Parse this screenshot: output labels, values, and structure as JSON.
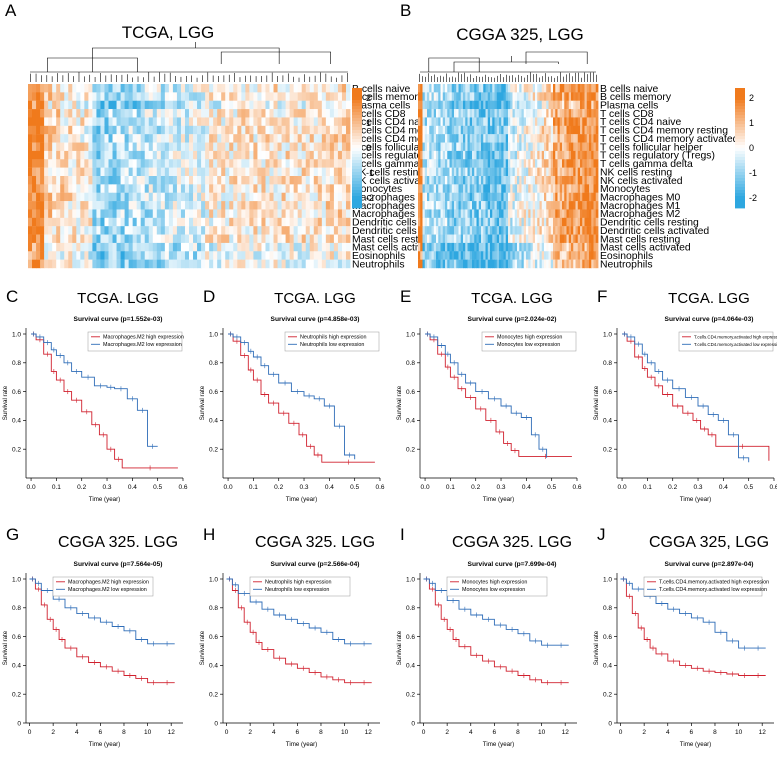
{
  "heatmaps": [
    {
      "letter": "A",
      "title": "TCGA, LGG",
      "scale": {
        "values": [
          2,
          1,
          0,
          -1,
          -2
        ]
      },
      "colors": {
        "low": "#2ea7e0",
        "mid": "#ffffff",
        "high": "#f07a1c"
      }
    },
    {
      "letter": "B",
      "title": "CGGA 325, LGG",
      "scale": {
        "values": [
          2,
          1,
          0,
          -1,
          -2
        ]
      },
      "colors": {
        "low": "#2ea7e0",
        "mid": "#ffffff",
        "high": "#f07a1c"
      }
    }
  ],
  "cell_types": [
    "B cells naive",
    "B cells memory",
    "Plasma cells",
    "T cells CD8",
    "T cells CD4 naive",
    "T cells CD4 memory resting",
    "T cells CD4 memory activated",
    "T cells follicular helper",
    "T cells regulatory (Tregs)",
    "T cells gamma delta",
    "NK cells resting",
    "NK cells activated",
    "Monocytes",
    "Macrophages M0",
    "Macrophages M1",
    "Macrophages M2",
    "Dendritic cells resting",
    "Dendritic cells activated",
    "Mast cells resting",
    "Mast cells activated",
    "Eosinophils",
    "Neutrophils"
  ],
  "survival_panels": [
    {
      "letter": "C",
      "title": "TCGA. LGG",
      "subtitle": "Survival curve (p=1.552e-03)",
      "legend": [
        "Macrophages.M2 high expression",
        "Macrophages.M2 low expression"
      ],
      "chart_data": {
        "type": "line",
        "title": "Survival curve (p=1.552e-03)",
        "xlabel": "Time (year)",
        "ylabel": "Survival rate",
        "xlim": [
          -0.02,
          0.6
        ],
        "ylim": [
          0,
          1.0
        ],
        "xticks": [
          "0.0",
          "0.1",
          "0.2",
          "0.3",
          "0.4",
          "0.5",
          "0.6"
        ],
        "yticks": [
          "0.2",
          "0.4",
          "0.6",
          "0.8",
          "1.0"
        ],
        "series": [
          {
            "name": "Macrophages.M2 high expression",
            "color": "#d0202e",
            "x": [
              0,
              0.02,
              0.05,
              0.08,
              0.1,
              0.13,
              0.16,
              0.2,
              0.24,
              0.27,
              0.3,
              0.33,
              0.36,
              0.58
            ],
            "y": [
              1.0,
              0.96,
              0.86,
              0.74,
              0.68,
              0.6,
              0.54,
              0.46,
              0.37,
              0.3,
              0.2,
              0.13,
              0.07,
              0.07
            ]
          },
          {
            "name": "Macrophages.M2 low expression",
            "color": "#2f6db8",
            "x": [
              0,
              0.02,
              0.05,
              0.08,
              0.1,
              0.13,
              0.16,
              0.2,
              0.25,
              0.3,
              0.33,
              0.38,
              0.42,
              0.46,
              0.5
            ],
            "y": [
              1.0,
              0.98,
              0.94,
              0.89,
              0.85,
              0.8,
              0.74,
              0.7,
              0.64,
              0.63,
              0.62,
              0.55,
              0.47,
              0.22,
              0.22
            ]
          }
        ]
      }
    },
    {
      "letter": "D",
      "title": "TCGA. LGG",
      "subtitle": "Survival curve (p=4.858e-03)",
      "legend": [
        "Neutrophils high expression",
        "Neutrophils low expression"
      ],
      "chart_data": {
        "type": "line",
        "title": "Survival curve (p=4.858e-03)",
        "xlabel": "Time (year)",
        "ylabel": "Survival rate",
        "xlim": [
          -0.02,
          0.6
        ],
        "ylim": [
          0,
          1.0
        ],
        "xticks": [
          "0.0",
          "0.1",
          "0.2",
          "0.3",
          "0.4",
          "0.5",
          "0.6"
        ],
        "yticks": [
          "0.2",
          "0.4",
          "0.6",
          "0.8",
          "1.0"
        ],
        "series": [
          {
            "name": "Neutrophils high expression",
            "color": "#d0202e",
            "x": [
              0,
              0.02,
              0.05,
              0.08,
              0.1,
              0.13,
              0.16,
              0.2,
              0.24,
              0.28,
              0.31,
              0.34,
              0.37,
              0.58
            ],
            "y": [
              1.0,
              0.95,
              0.85,
              0.75,
              0.68,
              0.58,
              0.52,
              0.45,
              0.38,
              0.3,
              0.22,
              0.16,
              0.11,
              0.11
            ]
          },
          {
            "name": "Neutrophils low expression",
            "color": "#2f6db8",
            "x": [
              0,
              0.02,
              0.05,
              0.08,
              0.1,
              0.13,
              0.16,
              0.2,
              0.25,
              0.3,
              0.34,
              0.38,
              0.42,
              0.46,
              0.5
            ],
            "y": [
              1.0,
              0.98,
              0.94,
              0.88,
              0.84,
              0.78,
              0.72,
              0.66,
              0.6,
              0.57,
              0.55,
              0.5,
              0.36,
              0.16,
              0.13
            ]
          }
        ]
      }
    },
    {
      "letter": "E",
      "title": "TCGA. LGG",
      "subtitle": "Survival curve (p=2.024e-02)",
      "legend": [
        "Monocytes high expression",
        "Monocytes low expression"
      ],
      "chart_data": {
        "type": "line",
        "title": "Survival curve (p=2.024e-02)",
        "xlabel": "Time (year)",
        "ylabel": "Survival rate",
        "xlim": [
          -0.02,
          0.6
        ],
        "ylim": [
          0,
          1.0
        ],
        "xticks": [
          "0.0",
          "0.1",
          "0.2",
          "0.3",
          "0.4",
          "0.5",
          "0.6"
        ],
        "yticks": [
          "0.2",
          "0.4",
          "0.6",
          "0.8",
          "1.0"
        ],
        "series": [
          {
            "name": "Monocytes high expression",
            "color": "#d0202e",
            "x": [
              0,
              0.02,
              0.05,
              0.08,
              0.1,
              0.13,
              0.16,
              0.2,
              0.24,
              0.28,
              0.31,
              0.34,
              0.37,
              0.58
            ],
            "y": [
              1.0,
              0.96,
              0.86,
              0.77,
              0.7,
              0.62,
              0.56,
              0.48,
              0.4,
              0.32,
              0.24,
              0.19,
              0.15,
              0.15
            ]
          },
          {
            "name": "Monocytes low expression",
            "color": "#2f6db8",
            "x": [
              0,
              0.02,
              0.05,
              0.08,
              0.1,
              0.13,
              0.16,
              0.2,
              0.25,
              0.3,
              0.34,
              0.38,
              0.42,
              0.45,
              0.48
            ],
            "y": [
              1.0,
              0.98,
              0.92,
              0.86,
              0.8,
              0.72,
              0.66,
              0.6,
              0.55,
              0.5,
              0.45,
              0.42,
              0.3,
              0.2,
              0.14
            ]
          }
        ]
      }
    },
    {
      "letter": "F",
      "title": "TCGA. LGG",
      "subtitle": "Survival curve (p=4.064e-03)",
      "legend": [
        "T.cells.CD4.memory.activated high expression",
        "T.cells.CD4.memory.activated low expression"
      ],
      "chart_data": {
        "type": "line",
        "title": "Survival curve (p=4.064e-03)",
        "xlabel": "Time (year)",
        "ylabel": "Survival rate",
        "xlim": [
          -0.02,
          0.6
        ],
        "ylim": [
          0,
          1.0
        ],
        "xticks": [
          "0.0",
          "0.1",
          "0.2",
          "0.3",
          "0.4",
          "0.5",
          "0.6"
        ],
        "yticks": [
          "0.2",
          "0.4",
          "0.6",
          "0.8",
          "1.0"
        ],
        "series": [
          {
            "name": "T.cells.CD4.memory.activated high expression",
            "color": "#d0202e",
            "x": [
              0,
              0.02,
              0.05,
              0.08,
              0.1,
              0.13,
              0.16,
              0.2,
              0.24,
              0.28,
              0.31,
              0.34,
              0.37,
              0.58
            ],
            "y": [
              1.0,
              0.95,
              0.84,
              0.76,
              0.7,
              0.64,
              0.58,
              0.5,
              0.45,
              0.4,
              0.34,
              0.3,
              0.22,
              0.12
            ]
          },
          {
            "name": "T.cells.CD4.memory.activated low expression",
            "color": "#2f6db8",
            "x": [
              0,
              0.02,
              0.05,
              0.08,
              0.1,
              0.13,
              0.16,
              0.2,
              0.25,
              0.3,
              0.34,
              0.38,
              0.42,
              0.46,
              0.5
            ],
            "y": [
              1.0,
              0.98,
              0.93,
              0.86,
              0.8,
              0.74,
              0.68,
              0.62,
              0.56,
              0.5,
              0.44,
              0.4,
              0.3,
              0.14,
              0.11
            ]
          }
        ]
      }
    },
    {
      "letter": "G",
      "title": "CGGA 325. LGG",
      "subtitle": "Survival curve (p=7.564e-05)",
      "legend": [
        "Macrophages.M2 high expression",
        "Macrophages.M2 low expression"
      ],
      "chart_data": {
        "type": "line",
        "title": "Survival curve (p=7.564e-05)",
        "xlabel": "Time (year)",
        "ylabel": "Survival rate",
        "xlim": [
          -0.3,
          13
        ],
        "ylim": [
          0,
          1.0
        ],
        "xticks": [
          "0",
          "2",
          "4",
          "6",
          "8",
          "10",
          "12"
        ],
        "yticks": [
          "0",
          "0.2",
          "0.4",
          "0.6",
          "0.8",
          "1.0"
        ],
        "series": [
          {
            "name": "Macrophages.M2 high expression",
            "color": "#d0202e",
            "x": [
              0,
              0.5,
              1,
              1.5,
              2,
              2.5,
              3,
              4,
              5,
              6,
              7,
              8,
              9,
              10,
              11,
              12.3
            ],
            "y": [
              1.0,
              0.93,
              0.82,
              0.72,
              0.65,
              0.58,
              0.52,
              0.46,
              0.42,
              0.39,
              0.36,
              0.33,
              0.31,
              0.28,
              0.28,
              0.28
            ]
          },
          {
            "name": "Macrophages.M2 low expression",
            "color": "#2f6db8",
            "x": [
              0,
              0.5,
              1,
              2,
              3,
              4,
              5,
              6,
              7,
              8,
              9,
              10,
              11,
              12.3
            ],
            "y": [
              1.0,
              0.97,
              0.92,
              0.86,
              0.8,
              0.76,
              0.73,
              0.7,
              0.67,
              0.64,
              0.58,
              0.55,
              0.55,
              0.55
            ]
          }
        ]
      }
    },
    {
      "letter": "H",
      "title": "CGGA 325. LGG",
      "subtitle": "Survival curve (p=2.566e-04)",
      "legend": [
        "Neutrophils high expression",
        "Neutrophils low expression"
      ],
      "chart_data": {
        "type": "line",
        "title": "Survival curve (p=2.566e-04)",
        "xlabel": "Time (year)",
        "ylabel": "Survival rate",
        "xlim": [
          -0.3,
          13
        ],
        "ylim": [
          0,
          1.0
        ],
        "xticks": [
          "0",
          "2",
          "4",
          "6",
          "8",
          "10",
          "12"
        ],
        "yticks": [
          "0",
          "0.2",
          "0.4",
          "0.6",
          "0.8",
          "1.0"
        ],
        "series": [
          {
            "name": "Neutrophils high expression",
            "color": "#d0202e",
            "x": [
              0,
              0.5,
              1,
              1.5,
              2,
              2.5,
              3,
              4,
              5,
              6,
              7,
              8,
              9,
              10,
              11,
              12.3
            ],
            "y": [
              1.0,
              0.92,
              0.8,
              0.7,
              0.63,
              0.56,
              0.51,
              0.45,
              0.41,
              0.38,
              0.35,
              0.32,
              0.3,
              0.28,
              0.28,
              0.28
            ]
          },
          {
            "name": "Neutrophils low expression",
            "color": "#2f6db8",
            "x": [
              0,
              0.5,
              1,
              2,
              3,
              4,
              5,
              6,
              7,
              8,
              9,
              10,
              11,
              12.3
            ],
            "y": [
              1.0,
              0.96,
              0.9,
              0.84,
              0.79,
              0.75,
              0.72,
              0.69,
              0.66,
              0.63,
              0.58,
              0.55,
              0.55,
              0.55
            ]
          }
        ]
      }
    },
    {
      "letter": "I",
      "title": "CGGA 325. LGG",
      "subtitle": "Survival curve (p=7.699e-04)",
      "legend": [
        "Monocytes high expression",
        "Monocytes low expression"
      ],
      "chart_data": {
        "type": "line",
        "title": "Survival curve (p=7.699e-04)",
        "xlabel": "Time (year)",
        "ylabel": "Survival rate",
        "xlim": [
          -0.3,
          13
        ],
        "ylim": [
          0,
          1.0
        ],
        "xticks": [
          "0",
          "2",
          "4",
          "6",
          "8",
          "10",
          "12"
        ],
        "yticks": [
          "0",
          "0.2",
          "0.4",
          "0.6",
          "0.8",
          "1.0"
        ],
        "series": [
          {
            "name": "Monocytes high expression",
            "color": "#d0202e",
            "x": [
              0,
              0.5,
              1,
              1.5,
              2,
              2.5,
              3,
              4,
              5,
              6,
              7,
              8,
              9,
              10,
              11,
              12.3
            ],
            "y": [
              1.0,
              0.93,
              0.82,
              0.72,
              0.65,
              0.58,
              0.53,
              0.47,
              0.43,
              0.39,
              0.36,
              0.33,
              0.3,
              0.28,
              0.28,
              0.28
            ]
          },
          {
            "name": "Monocytes low expression",
            "color": "#2f6db8",
            "x": [
              0,
              0.5,
              1,
              2,
              3,
              4,
              5,
              6,
              7,
              8,
              9,
              10,
              11,
              12.3
            ],
            "y": [
              1.0,
              0.97,
              0.92,
              0.85,
              0.79,
              0.75,
              0.72,
              0.68,
              0.65,
              0.62,
              0.57,
              0.54,
              0.54,
              0.54
            ]
          }
        ]
      }
    },
    {
      "letter": "J",
      "title": "CGGA 325, LGG",
      "subtitle": "Survival curve (p=2.897e-04)",
      "legend": [
        "T.cells.CD4.memory.activated high expression",
        "T.cells.CD4.memory.activated low expression"
      ],
      "chart_data": {
        "type": "line",
        "title": "Survival curve (p=2.897e-04)",
        "xlabel": "Time (year)",
        "ylabel": "Survival rate",
        "xlim": [
          -0.3,
          13
        ],
        "ylim": [
          0,
          1.0
        ],
        "xticks": [
          "0",
          "2",
          "4",
          "6",
          "8",
          "10",
          "12"
        ],
        "yticks": [
          "0",
          "0.2",
          "0.4",
          "0.6",
          "0.8",
          "1.0"
        ],
        "series": [
          {
            "name": "T.cells.CD4.memory.activated high expression",
            "color": "#d0202e",
            "x": [
              0,
              0.5,
              1,
              1.5,
              2,
              2.5,
              3,
              4,
              5,
              6,
              7,
              8,
              9,
              10,
              11,
              12.3
            ],
            "y": [
              1.0,
              0.88,
              0.76,
              0.66,
              0.58,
              0.52,
              0.48,
              0.43,
              0.4,
              0.38,
              0.36,
              0.35,
              0.34,
              0.33,
              0.33,
              0.33
            ]
          },
          {
            "name": "T.cells.CD4.memory.activated low expression",
            "color": "#2f6db8",
            "x": [
              0,
              0.5,
              1,
              2,
              3,
              4,
              5,
              6,
              7,
              8,
              9,
              10,
              11,
              12.3
            ],
            "y": [
              1.0,
              0.97,
              0.93,
              0.88,
              0.83,
              0.79,
              0.76,
              0.73,
              0.7,
              0.63,
              0.57,
              0.52,
              0.52,
              0.52
            ]
          }
        ]
      }
    }
  ]
}
